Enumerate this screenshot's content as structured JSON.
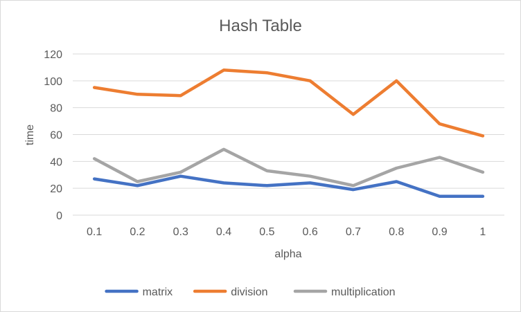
{
  "chart_data": {
    "type": "line",
    "title": "Hash Table",
    "xlabel": "alpha",
    "ylabel": "time",
    "categories": [
      "0.1",
      "0.2",
      "0.3",
      "0.4",
      "0.5",
      "0.6",
      "0.7",
      "0.8",
      "0.9",
      "1"
    ],
    "ylim": [
      0,
      120
    ],
    "yticks": [
      0,
      20,
      40,
      60,
      80,
      100,
      120
    ],
    "grid": true,
    "legend_position": "bottom",
    "series": [
      {
        "name": "matrix",
        "color": "#4472c4",
        "values": [
          27,
          22,
          29,
          24,
          22,
          24,
          19,
          25,
          14,
          14
        ]
      },
      {
        "name": "division",
        "color": "#ed7d31",
        "values": [
          95,
          90,
          89,
          108,
          106,
          100,
          75,
          100,
          68,
          59
        ]
      },
      {
        "name": "multiplication",
        "color": "#a5a5a5",
        "values": [
          42,
          25,
          32,
          49,
          33,
          29,
          22,
          35,
          43,
          32
        ]
      }
    ]
  }
}
